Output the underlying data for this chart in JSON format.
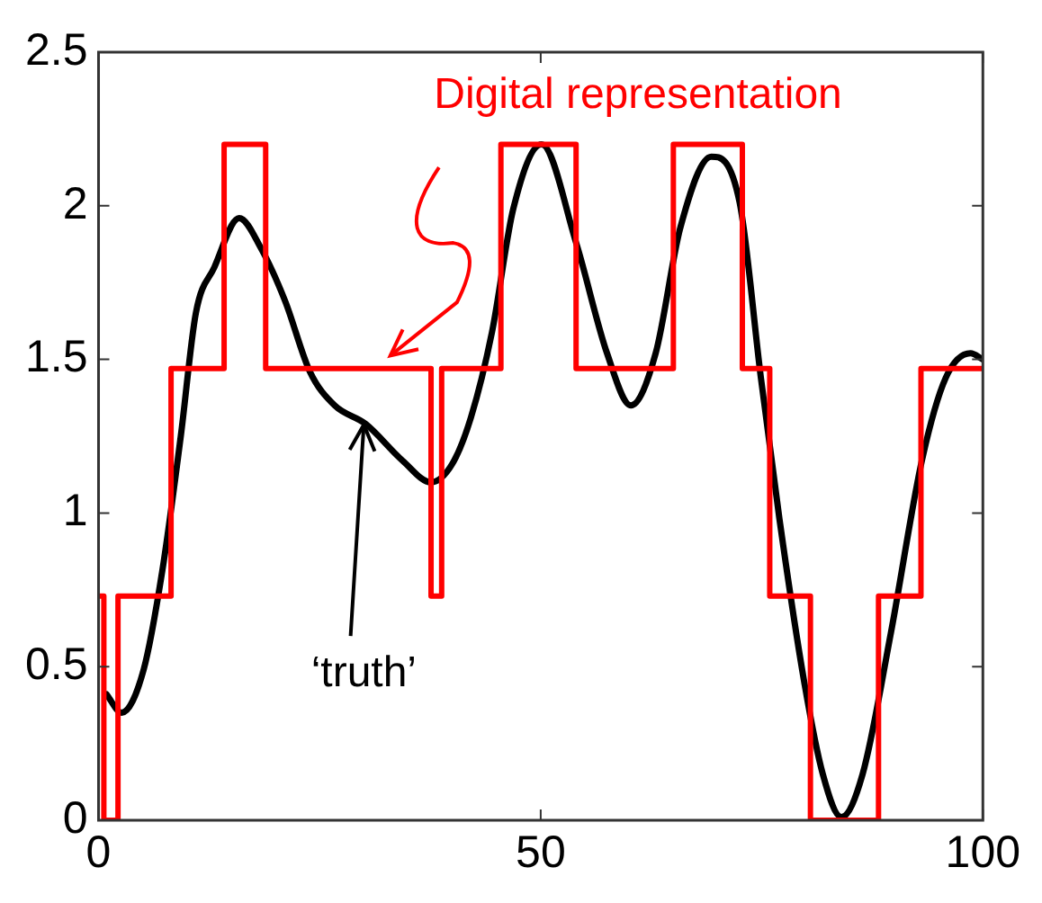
{
  "chart_data": {
    "type": "line",
    "series": [
      {
        "name": "Digital representation",
        "type": "step",
        "color": "#ff0000",
        "x": [
          0,
          0.6,
          2.2,
          8.2,
          14.2,
          18.9,
          37.6,
          38.8,
          45.5,
          54.0,
          65.0,
          72.8,
          75.9,
          80.5,
          88.2,
          93.0,
          100
        ],
        "values": [
          0.73,
          0,
          0.73,
          1.47,
          2.2,
          1.47,
          0.73,
          1.47,
          2.2,
          1.47,
          2.2,
          1.47,
          0.73,
          0,
          0.73,
          1.47,
          1.47
        ]
      },
      {
        "name": "‘truth’",
        "type": "line",
        "color": "#000000",
        "x": [
          0.9,
          2.6,
          5.1,
          7.2,
          9.3,
          11.0,
          13.1,
          15.9,
          18.4,
          21.1,
          23.9,
          26.7,
          30.2,
          34.4,
          37.6,
          40.0,
          42.1,
          44.5,
          46.9,
          50.1,
          54.0,
          57.5,
          60.2,
          63.0,
          65.8,
          69.3,
          72.5,
          74.9,
          77.0,
          79.8,
          81.9,
          84.0,
          86.4,
          89.6,
          93.1,
          95.8,
          98.6,
          100
        ],
        "values": [
          0.41,
          0.35,
          0.49,
          0.81,
          1.25,
          1.65,
          1.8,
          1.96,
          1.86,
          1.69,
          1.46,
          1.35,
          1.29,
          1.17,
          1.1,
          1.16,
          1.31,
          1.59,
          1.99,
          2.2,
          1.88,
          1.52,
          1.35,
          1.52,
          1.93,
          2.16,
          2.01,
          1.44,
          0.98,
          0.45,
          0.15,
          0.01,
          0.15,
          0.61,
          1.17,
          1.44,
          1.52,
          1.5
        ]
      }
    ],
    "xlim": [
      0,
      100
    ],
    "xticks": [
      0,
      50,
      100
    ],
    "ylim": [
      0,
      2.5
    ],
    "yticks": [
      0,
      0.5,
      1,
      1.5,
      2,
      2.5
    ],
    "grid": false,
    "legend": false
  }
}
